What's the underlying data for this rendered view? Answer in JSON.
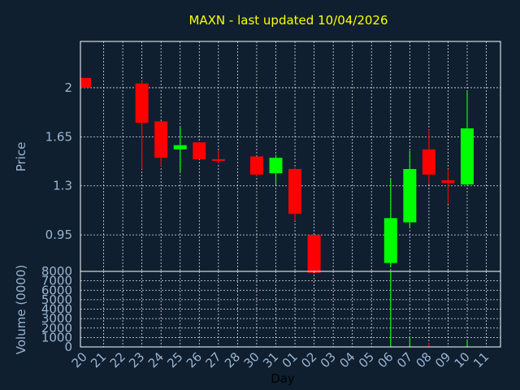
{
  "chart_data": {
    "type": "candlestick",
    "title": "MAXN - last updated 10/04/2026",
    "price": {
      "ylabel": "Price",
      "yticks": [
        0.95,
        1.3,
        1.65,
        2
      ],
      "ytick_labels": [
        "0.95",
        "1.3",
        "1.65",
        "2"
      ],
      "ylim": [
        0.69,
        2.33
      ]
    },
    "volume": {
      "ylabel": "Volume (0000)",
      "yticks": [
        0,
        1000,
        2000,
        3000,
        4000,
        5000,
        6000,
        7000,
        8000
      ],
      "ytick_labels": [
        "0",
        "1000",
        "2000",
        "3000",
        "4000",
        "5000",
        "6000",
        "7000",
        "8000"
      ],
      "ylim": [
        0,
        8000
      ]
    },
    "xlabel": "Day",
    "x_ticks": [
      "20",
      "21",
      "22",
      "23",
      "24",
      "25",
      "26",
      "27",
      "28",
      "30",
      "31",
      "01",
      "02",
      "03",
      "04",
      "05",
      "06",
      "07",
      "08",
      "09",
      "10",
      "11"
    ],
    "grid": true,
    "colors": {
      "up": "#00ff00",
      "down": "#ff0000",
      "title": "#ffff00",
      "axis": "#9ab4d0",
      "grid": "#ffffff",
      "background": "#0f1f30"
    },
    "candles": [
      {
        "day": "20",
        "open": 2.07,
        "high": 2.07,
        "low": 2.0,
        "close": 2.0,
        "volume": 0
      },
      {
        "day": "23",
        "open": 2.03,
        "high": 2.05,
        "low": 1.42,
        "close": 1.75,
        "volume": 0
      },
      {
        "day": "24",
        "open": 1.76,
        "high": 1.76,
        "low": 1.44,
        "close": 1.5,
        "volume": 0
      },
      {
        "day": "25",
        "open": 1.56,
        "high": 1.72,
        "low": 1.4,
        "close": 1.59,
        "volume": 0
      },
      {
        "day": "26",
        "open": 1.61,
        "high": 1.61,
        "low": 1.49,
        "close": 1.49,
        "volume": 0
      },
      {
        "day": "27",
        "open": 1.49,
        "high": 1.55,
        "low": 1.46,
        "close": 1.48,
        "volume": 0
      },
      {
        "day": "30",
        "open": 1.51,
        "high": 1.51,
        "low": 1.37,
        "close": 1.38,
        "volume": 0
      },
      {
        "day": "31",
        "open": 1.39,
        "high": 1.52,
        "low": 1.31,
        "close": 1.5,
        "volume": 0
      },
      {
        "day": "01",
        "open": 1.42,
        "high": 1.43,
        "low": 1.05,
        "close": 1.1,
        "volume": 0
      },
      {
        "day": "02",
        "open": 0.95,
        "high": 0.95,
        "low": 0.68,
        "close": 0.68,
        "volume": 0
      },
      {
        "day": "06",
        "open": 0.75,
        "high": 1.35,
        "low": 0.72,
        "close": 1.07,
        "volume": 8000
      },
      {
        "day": "07",
        "open": 1.04,
        "high": 1.55,
        "low": 1.0,
        "close": 1.42,
        "volume": 1100
      },
      {
        "day": "08",
        "open": 1.56,
        "high": 1.7,
        "low": 1.31,
        "close": 1.38,
        "volume": 400
      },
      {
        "day": "09",
        "open": 1.34,
        "high": 1.42,
        "low": 1.17,
        "close": 1.32,
        "volume": 0
      },
      {
        "day": "10",
        "open": 1.31,
        "high": 1.97,
        "low": 1.3,
        "close": 1.71,
        "volume": 800
      }
    ]
  }
}
